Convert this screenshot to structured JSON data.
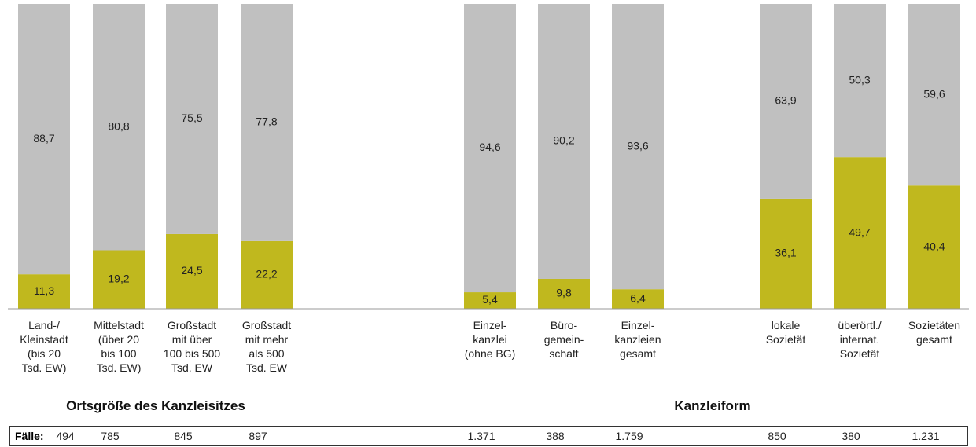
{
  "chart_data": {
    "type": "stacked_bar",
    "categories": [
      "Land-/\nKleinstadt\n(bis 20\nTsd. EW)",
      "Mittelstadt\n(über 20\nbis 100\nTsd. EW)",
      "Großstadt\nmit über\n100 bis 500\nTsd. EW",
      "Großstadt\nmit mehr\nals 500\nTsd. EW",
      "Einzel-\nkanzlei\n(ohne BG)",
      "Büro-\ngemein-\nschaft",
      "Einzel-\nkanzleien\ngesamt",
      "lokale\nSozietät",
      "überörtl./\ninternat.\nSozietät",
      "Sozietäten\ngesamt"
    ],
    "series": [
      {
        "color": "#c0b81e",
        "values": [
          11.3,
          19.2,
          24.5,
          22.2,
          5.4,
          9.8,
          6.4,
          36.1,
          49.7,
          40.4
        ],
        "value_labels": [
          "11,3",
          "19,2",
          "24,5",
          "22,2",
          "5,4",
          "9,8",
          "6,4",
          "36,1",
          "49,7",
          "40,4"
        ]
      },
      {
        "color": "#c0c0c0",
        "values": [
          88.7,
          80.8,
          75.5,
          77.8,
          94.6,
          90.2,
          93.6,
          63.9,
          50.3,
          59.6
        ],
        "value_labels": [
          "88,7",
          "80,8",
          "75,5",
          "77,8",
          "94,6",
          "90,2",
          "93,6",
          "63,9",
          "50,3",
          "59,6"
        ]
      }
    ],
    "ylim": [
      0,
      100
    ],
    "group_titles": [
      "Ortsgröße des Kanzleisitzes",
      "Kanzleiform"
    ],
    "cases_label": "Fälle:",
    "cases": [
      494,
      785,
      845,
      897,
      {
        "value": 1371,
        "label": "1.371"
      },
      388,
      {
        "value": 1759,
        "label": "1.759"
      },
      850,
      380,
      {
        "value": 1231,
        "label": "1.231"
      }
    ]
  }
}
